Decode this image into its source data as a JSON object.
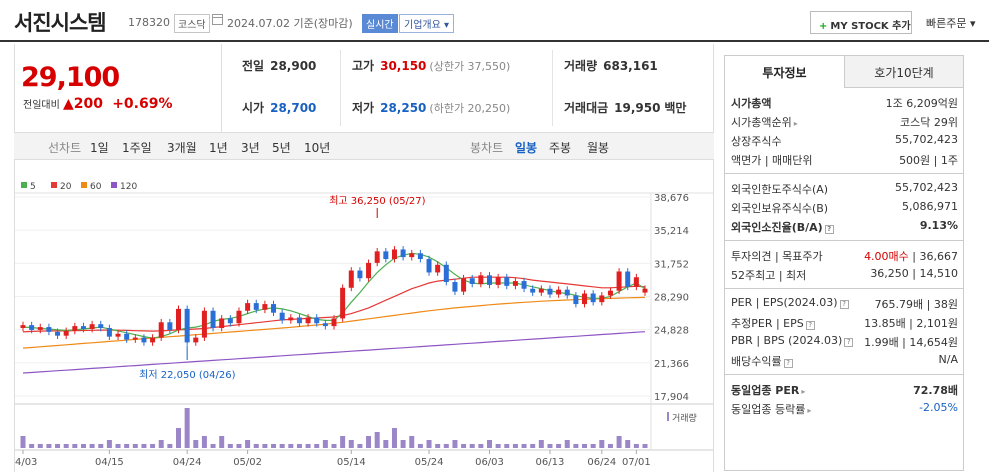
{
  "header": {
    "name": "서진시스템",
    "code": "178320",
    "market": "코스닥",
    "date_text": "2024.07.02 기준(장마감)",
    "live_badge": "실시간",
    "corp_info": "기업개요",
    "mystock_label": "MY STOCK 추가",
    "quick_order": "빠른주문"
  },
  "price": {
    "current": "29,100",
    "change_label": "전일대비",
    "change": "200",
    "change_pct": "+0.69%"
  },
  "quote": {
    "prev_label": "전일",
    "prev": "28,900",
    "open_label": "시가",
    "open": "28,700",
    "high_label": "고가",
    "high": "30,150",
    "upper_limit": "(상한가 37,550)",
    "low_label": "저가",
    "low": "28,250",
    "lower_limit": "(하한가 20,250)",
    "volume_label": "거래량",
    "volume": "683,161",
    "amount_label": "거래대금",
    "amount": "19,950",
    "amount_unit": "백만"
  },
  "toolbar": {
    "line_label": "선차트",
    "periods": [
      "1일",
      "1주일",
      "3개월",
      "1년",
      "3년",
      "5년",
      "10년"
    ],
    "candle_label": "봉차트",
    "candles": [
      "일봉",
      "주봉",
      "월봉"
    ],
    "active_candle": "일봉"
  },
  "chart_data": {
    "type": "candlestick",
    "legend": [
      "5",
      "20",
      "60",
      "120"
    ],
    "legend_colors": [
      "#4caf50",
      "#e53935",
      "#ef8a17",
      "#8e55c4"
    ],
    "y_ticks": [
      "38,676",
      "35,214",
      "31,752",
      "28,290",
      "24,828",
      "21,366",
      "17,904"
    ],
    "ylim": [
      17904,
      38676
    ],
    "x_ticks": [
      "04/03",
      "04/15",
      "04/24",
      "05/02",
      "05/14",
      "05/24",
      "06/03",
      "06/13",
      "06/24",
      "07/01"
    ],
    "high_annotation": "최고 36,250 (05/27)",
    "low_annotation": "최저 22,050 (04/26)",
    "volume_label": "거래량",
    "candles": [
      {
        "o": 25000,
        "c": 25300
      },
      {
        "o": 25300,
        "c": 24800
      },
      {
        "o": 24800,
        "c": 25100
      },
      {
        "o": 25100,
        "c": 24600
      },
      {
        "o": 24600,
        "c": 24200
      },
      {
        "o": 24200,
        "c": 24700
      },
      {
        "o": 24700,
        "c": 25200
      },
      {
        "o": 25200,
        "c": 24900
      },
      {
        "o": 24900,
        "c": 25400
      },
      {
        "o": 25400,
        "c": 25000
      },
      {
        "o": 25000,
        "c": 24100
      },
      {
        "o": 24100,
        "c": 24400
      },
      {
        "o": 24400,
        "c": 23800
      },
      {
        "o": 23800,
        "c": 24000
      },
      {
        "o": 24000,
        "c": 23500
      },
      {
        "o": 23500,
        "c": 24000
      },
      {
        "o": 24000,
        "c": 25600
      },
      {
        "o": 25600,
        "c": 24800
      },
      {
        "o": 24800,
        "c": 27000
      },
      {
        "o": 27000,
        "c": 23500
      },
      {
        "o": 23500,
        "c": 24000
      },
      {
        "o": 24000,
        "c": 26800
      },
      {
        "o": 26800,
        "c": 25000
      },
      {
        "o": 25000,
        "c": 26000
      },
      {
        "o": 26000,
        "c": 25500
      },
      {
        "o": 25500,
        "c": 26800
      },
      {
        "o": 26800,
        "c": 27600
      },
      {
        "o": 27600,
        "c": 26900
      },
      {
        "o": 26900,
        "c": 27500
      },
      {
        "o": 27500,
        "c": 26600
      },
      {
        "o": 26600,
        "c": 25800
      },
      {
        "o": 25800,
        "c": 26100
      },
      {
        "o": 26100,
        "c": 25500
      },
      {
        "o": 25500,
        "c": 26100
      },
      {
        "o": 26100,
        "c": 25500
      },
      {
        "o": 25500,
        "c": 25200
      },
      {
        "o": 25200,
        "c": 26000
      },
      {
        "o": 26000,
        "c": 29200
      },
      {
        "o": 29200,
        "c": 31000
      },
      {
        "o": 31000,
        "c": 30200
      },
      {
        "o": 30200,
        "c": 31800
      },
      {
        "o": 31800,
        "c": 33000
      },
      {
        "o": 33000,
        "c": 32200
      },
      {
        "o": 32200,
        "c": 33200
      },
      {
        "o": 33200,
        "c": 32400
      },
      {
        "o": 32400,
        "c": 32800
      },
      {
        "o": 32800,
        "c": 32200
      },
      {
        "o": 32200,
        "c": 30800
      },
      {
        "o": 30800,
        "c": 31600
      },
      {
        "o": 31600,
        "c": 29800
      },
      {
        "o": 29800,
        "c": 28800
      },
      {
        "o": 28800,
        "c": 30200
      },
      {
        "o": 30200,
        "c": 29600
      },
      {
        "o": 29600,
        "c": 30500
      },
      {
        "o": 30500,
        "c": 29500
      },
      {
        "o": 29500,
        "c": 30300
      },
      {
        "o": 30300,
        "c": 29400
      },
      {
        "o": 29400,
        "c": 29900
      },
      {
        "o": 29900,
        "c": 29100
      },
      {
        "o": 29100,
        "c": 28700
      },
      {
        "o": 28700,
        "c": 29100
      },
      {
        "o": 29100,
        "c": 28500
      },
      {
        "o": 28500,
        "c": 29000
      },
      {
        "o": 29000,
        "c": 28400
      },
      {
        "o": 28400,
        "c": 27500
      },
      {
        "o": 27500,
        "c": 28600
      },
      {
        "o": 28600,
        "c": 27700
      },
      {
        "o": 27700,
        "c": 28400
      },
      {
        "o": 28400,
        "c": 28900
      },
      {
        "o": 28900,
        "c": 30900
      },
      {
        "o": 30900,
        "c": 29300
      },
      {
        "o": 29300,
        "c": 30300
      },
      {
        "o": 28700,
        "c": 29100
      }
    ],
    "ma5": [
      25100,
      25050,
      24950,
      24900,
      24800,
      24750,
      24800,
      24900,
      25000,
      25100,
      24900,
      24700,
      24500,
      24300,
      24100,
      23950,
      24100,
      24400,
      24800,
      25000,
      25100,
      25300,
      25700,
      25900,
      26000,
      26200,
      26500,
      26800,
      27000,
      27100,
      27000,
      26800,
      26500,
      26200,
      25900,
      25800,
      25800,
      26600,
      27700,
      28700,
      29800,
      30800,
      31600,
      32300,
      32600,
      32800,
      32700,
      32400,
      31900,
      31300,
      30600,
      30000,
      29700,
      29600,
      29700,
      29700,
      29700,
      29700,
      29500,
      29300,
      29100,
      28900,
      28700,
      28600,
      28400,
      28200,
      28100,
      28100,
      28300,
      28800,
      29300,
      29700,
      29100
    ],
    "ma20": [
      24600,
      24650,
      24680,
      24700,
      24700,
      24700,
      24720,
      24740,
      24760,
      24780,
      24780,
      24770,
      24750,
      24720,
      24700,
      24680,
      24700,
      24750,
      24800,
      24850,
      24900,
      24950,
      25050,
      25150,
      25250,
      25350,
      25450,
      25550,
      25650,
      25750,
      25850,
      25900,
      25950,
      26000,
      26050,
      26100,
      26150,
      26300,
      26500,
      26800,
      27100,
      27500,
      27900,
      28300,
      28700,
      29100,
      29400,
      29700,
      29900,
      30000,
      30100,
      30200,
      30300,
      30300,
      30300,
      30300,
      30300,
      30250,
      30150,
      30000,
      29900,
      29800,
      29700,
      29600,
      29500,
      29400,
      29300,
      29200,
      29200,
      29250,
      29300,
      29350,
      29300
    ],
    "ma60": [
      22900,
      22970,
      23040,
      23110,
      23180,
      23250,
      23320,
      23390,
      23460,
      23530,
      23600,
      23670,
      23740,
      23810,
      23880,
      23950,
      24020,
      24090,
      24160,
      24230,
      24300,
      24370,
      24440,
      24510,
      24580,
      24650,
      24720,
      24790,
      24860,
      24930,
      25000,
      25080,
      25160,
      25240,
      25320,
      25400,
      25500,
      25600,
      25720,
      25840,
      25960,
      26080,
      26200,
      26320,
      26440,
      26560,
      26680,
      26800,
      26900,
      27000,
      27100,
      27180,
      27260,
      27340,
      27420,
      27500,
      27560,
      27620,
      27680,
      27740,
      27800,
      27840,
      27880,
      27920,
      27960,
      28000,
      28030,
      28060,
      28090,
      28120,
      28150,
      28180,
      28200
    ],
    "ma120": [
      20300,
      20360,
      20420,
      20480,
      20540,
      20600,
      20660,
      20720,
      20780,
      20840,
      20900,
      20960,
      21020,
      21080,
      21140,
      21200,
      21260,
      21320,
      21380,
      21440,
      21500,
      21560,
      21620,
      21680,
      21740,
      21800,
      21860,
      21920,
      21980,
      22040,
      22100,
      22160,
      22220,
      22280,
      22340,
      22400,
      22460,
      22520,
      22580,
      22640,
      22700,
      22760,
      22820,
      22880,
      22940,
      23000,
      23060,
      23120,
      23180,
      23240,
      23300,
      23360,
      23420,
      23480,
      23540,
      23600,
      23660,
      23720,
      23780,
      23840,
      23900,
      23960,
      24020,
      24080,
      24140,
      24200,
      24260,
      24320,
      24380,
      24440,
      24500,
      24560,
      24620
    ],
    "volume": [
      3,
      1,
      1,
      1,
      1,
      1,
      1,
      1,
      1,
      1,
      2,
      1,
      1,
      1,
      1,
      1,
      2,
      1,
      5,
      10,
      2,
      3,
      1,
      3,
      1,
      1,
      2,
      1,
      1,
      1,
      1,
      1,
      1,
      1,
      1,
      2,
      1,
      3,
      2,
      1,
      3,
      4,
      2,
      5,
      2,
      3,
      1,
      2,
      1,
      1,
      2,
      1,
      1,
      1,
      2,
      1,
      1,
      1,
      1,
      1,
      2,
      1,
      1,
      2,
      1,
      1,
      1,
      2,
      1,
      3,
      2,
      1,
      1
    ]
  },
  "invest": {
    "tabs": [
      "투자정보",
      "호가10단계"
    ],
    "rows1": [
      {
        "k": "시가총액",
        "v": "1조 6,209억원"
      },
      {
        "k": "시가총액순위",
        "v": "코스닥 29위"
      },
      {
        "k": "상장주식수",
        "v": "55,702,423"
      },
      {
        "k": "액면가 | 매매단위",
        "v": "500원 | 1주"
      }
    ],
    "rows2": [
      {
        "k": "외국인한도주식수(A)",
        "v": "55,702,423"
      },
      {
        "k": "외국인보유주식수(B)",
        "v": "5,086,971"
      },
      {
        "k": "외국인소진율(B/A)",
        "v": "9.13%"
      }
    ],
    "rows3": [
      {
        "k": "투자의견 | 목표주가",
        "v1": "4.00매수",
        "v2": "| 36,667"
      },
      {
        "k": "52주최고 | 최저",
        "v": "36,250 | 14,510"
      }
    ],
    "rows4": [
      {
        "k": "PER | EPS(2024.03)",
        "v": "765.79배 | 38원"
      },
      {
        "k": "추정PER | EPS",
        "v": "13.85배 | 2,101원"
      },
      {
        "k": "PBR | BPS (2024.03)",
        "v": "1.99배 | 14,654원"
      },
      {
        "k": "배당수익률",
        "v": "N/A"
      }
    ],
    "rows5": [
      {
        "k": "동일업종 PER",
        "v": "72.78배"
      },
      {
        "k": "동일업종 등락률",
        "v": "-2.05%"
      }
    ]
  }
}
